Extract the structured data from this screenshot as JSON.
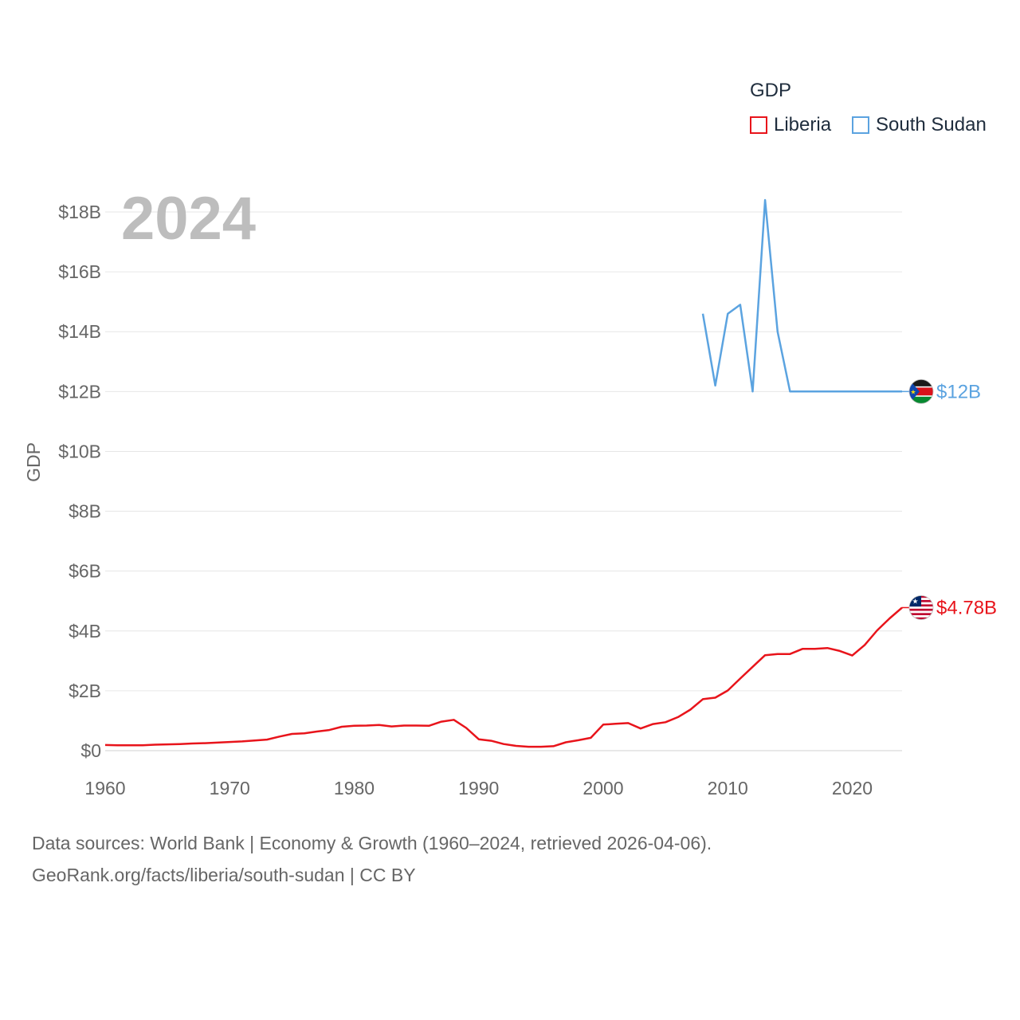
{
  "legend": {
    "title": "GDP",
    "items": [
      {
        "label": "Liberia",
        "color": "#e8141b"
      },
      {
        "label": "South Sudan",
        "color": "#5ba3e0"
      }
    ]
  },
  "year_label": "2024",
  "footer": {
    "line1": "Data sources: World Bank | Economy & Growth (1960–2024, retrieved 2026-04-06).",
    "line2": "GeoRank.org/facts/liberia/south-sudan | CC BY"
  },
  "chart_data": {
    "type": "line",
    "title": "GDP",
    "ylabel": "GDP",
    "xlabel": "",
    "xlim": [
      1960,
      2024
    ],
    "ylim": [
      0,
      18
    ],
    "y_unit": "billion USD",
    "x_ticks": [
      1960,
      1970,
      1980,
      1990,
      2000,
      2010,
      2020
    ],
    "y_ticks": [
      {
        "value": 0,
        "label": "$0"
      },
      {
        "value": 2,
        "label": "$2B"
      },
      {
        "value": 4,
        "label": "$4B"
      },
      {
        "value": 6,
        "label": "$6B"
      },
      {
        "value": 8,
        "label": "$8B"
      },
      {
        "value": 10,
        "label": "$10B"
      },
      {
        "value": 12,
        "label": "$12B"
      },
      {
        "value": 14,
        "label": "$14B"
      },
      {
        "value": 16,
        "label": "$16B"
      },
      {
        "value": 18,
        "label": "$18B"
      }
    ],
    "grid": true,
    "series": [
      {
        "name": "Liberia",
        "color": "#e8141b",
        "end_label": "$4.78B",
        "flag": "liberia-flag",
        "x": [
          1960,
          1961,
          1962,
          1963,
          1964,
          1965,
          1966,
          1967,
          1968,
          1969,
          1970,
          1971,
          1972,
          1973,
          1974,
          1975,
          1976,
          1977,
          1978,
          1979,
          1980,
          1981,
          1982,
          1983,
          1984,
          1985,
          1986,
          1987,
          1988,
          1989,
          1990,
          1991,
          1992,
          1993,
          1994,
          1995,
          1996,
          1997,
          1998,
          1999,
          2000,
          2001,
          2002,
          2003,
          2004,
          2005,
          2006,
          2007,
          2008,
          2009,
          2010,
          2011,
          2012,
          2013,
          2014,
          2015,
          2016,
          2017,
          2018,
          2019,
          2020,
          2021,
          2022,
          2023,
          2024
        ],
        "values": [
          0.19,
          0.18,
          0.18,
          0.18,
          0.2,
          0.21,
          0.22,
          0.24,
          0.25,
          0.27,
          0.29,
          0.31,
          0.34,
          0.37,
          0.47,
          0.56,
          0.58,
          0.64,
          0.69,
          0.8,
          0.83,
          0.84,
          0.86,
          0.81,
          0.84,
          0.84,
          0.83,
          0.97,
          1.03,
          0.76,
          0.38,
          0.33,
          0.22,
          0.16,
          0.13,
          0.13,
          0.15,
          0.28,
          0.35,
          0.43,
          0.87,
          0.9,
          0.92,
          0.74,
          0.89,
          0.95,
          1.12,
          1.37,
          1.72,
          1.77,
          2.01,
          2.41,
          2.8,
          3.19,
          3.23,
          3.23,
          3.4,
          3.4,
          3.43,
          3.33,
          3.18,
          3.53,
          4.02,
          4.42,
          4.78
        ]
      },
      {
        "name": "South Sudan",
        "color": "#5ba3e0",
        "end_label": "$12B",
        "flag": "south-sudan-flag",
        "x": [
          2008,
          2009,
          2010,
          2011,
          2012,
          2013,
          2014,
          2015,
          2016,
          2017,
          2018,
          2019,
          2020,
          2021,
          2022,
          2023,
          2024
        ],
        "values": [
          14.6,
          12.2,
          14.6,
          14.9,
          12.0,
          18.4,
          14.0,
          12.0,
          12.0,
          12.0,
          12.0,
          12.0,
          12.0,
          12.0,
          12.0,
          12.0,
          12.0
        ]
      }
    ]
  }
}
